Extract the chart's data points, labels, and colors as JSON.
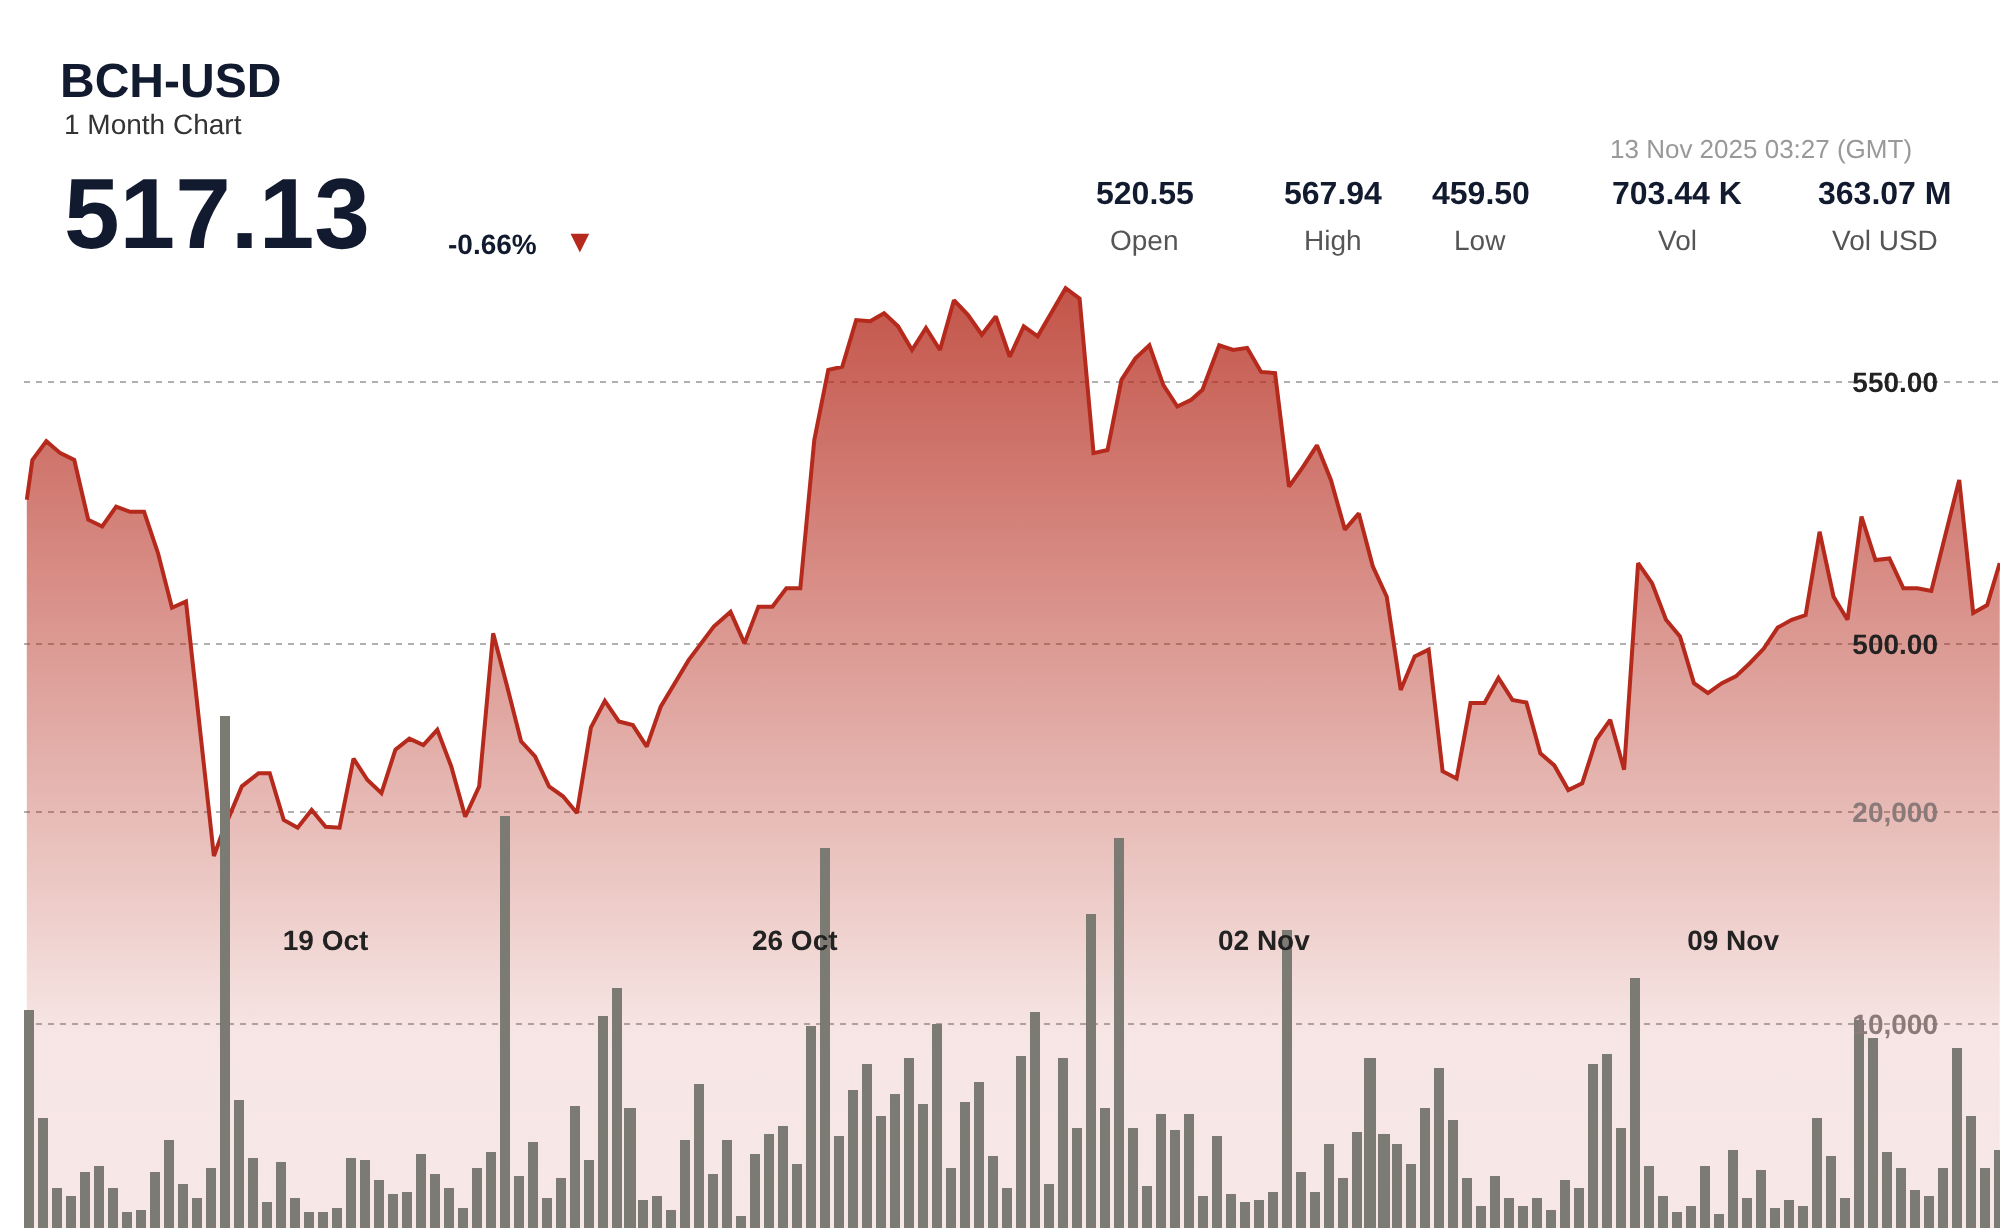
{
  "chart_data": {
    "type": "area",
    "title": "BCH-USD",
    "subtitle": "1 Month Chart",
    "annotations": [
      "517.13",
      "-0.66%",
      "▼",
      "520.55",
      "Open",
      "567.94",
      "High",
      "459.50",
      "Low",
      "703.44 K",
      "Vol",
      "363.07 M",
      "Vol USD",
      "13 Nov 2025 03:27 (GMT)"
    ],
    "xlim": [
      "2025-10-14T12:00",
      "2025-11-12T23:36"
    ],
    "xticks": [
      {
        "value": "2025-10-19",
        "label": "19 Oct"
      },
      {
        "value": "2025-10-26",
        "label": "26 Oct"
      },
      {
        "value": "2025-11-02",
        "label": "02 Nov"
      },
      {
        "value": "2025-11-09",
        "label": "09 Nov"
      }
    ],
    "ylim": [
      388.5,
      622.9
    ],
    "yticks": [
      {
        "value": 500,
        "label": "500.00"
      },
      {
        "value": 550,
        "label": "550.00"
      }
    ],
    "y2lim": [
      380,
      58300
    ],
    "y2ticks": [
      {
        "value": 10000,
        "label": "10,000"
      },
      {
        "value": 20000,
        "label": "20,000"
      }
    ],
    "grid": "y",
    "series": [
      {
        "color": "#b52a1c",
        "x": [
          "2025-10-14T13:00",
          "2025-10-14T15:00",
          "2025-10-14T20:00",
          "2025-10-15T01:00",
          "2025-10-15T06:00",
          "2025-10-15T11:00",
          "2025-10-15T16:00",
          "2025-10-15T21:00",
          "2025-10-16T02:00",
          "2025-10-16T07:00",
          "2025-10-16T12:00",
          "2025-10-16T17:00",
          "2025-10-16T22:00",
          "2025-10-17T08:00",
          "2025-10-17T11:00",
          "2025-10-17T18:00",
          "2025-10-18T00:00",
          "2025-10-18T04:00",
          "2025-10-18T09:00",
          "2025-10-18T14:00",
          "2025-10-18T19:00",
          "2025-10-19T00:00",
          "2025-10-19T05:00",
          "2025-10-19T10:00",
          "2025-10-19T15:00",
          "2025-10-19T20:00",
          "2025-10-20T01:00",
          "2025-10-20T06:00",
          "2025-10-20T11:00",
          "2025-10-20T16:00",
          "2025-10-20T21:00",
          "2025-10-21T02:00",
          "2025-10-21T07:00",
          "2025-10-21T12:00",
          "2025-10-21T17:00",
          "2025-10-21T22:00",
          "2025-10-22T03:00",
          "2025-10-22T08:00",
          "2025-10-22T13:00",
          "2025-10-22T18:00",
          "2025-10-22T23:00",
          "2025-10-23T04:00",
          "2025-10-23T09:00",
          "2025-10-23T14:00",
          "2025-10-23T19:00",
          "2025-10-24T00:00",
          "2025-10-24T10:00",
          "2025-10-24T19:00",
          "2025-10-25T01:00",
          "2025-10-25T06:00",
          "2025-10-25T11:00",
          "2025-10-25T16:00",
          "2025-10-25T21:00",
          "2025-10-26T02:00",
          "2025-10-26T07:00",
          "2025-10-26T12:00",
          "2025-10-26T17:00",
          "2025-10-26T22:00",
          "2025-10-27T03:00",
          "2025-10-27T08:00",
          "2025-10-27T13:00",
          "2025-10-27T18:00",
          "2025-10-27T23:00",
          "2025-10-28T04:00",
          "2025-10-28T09:00",
          "2025-10-28T14:00",
          "2025-10-28T19:00",
          "2025-10-29T00:00",
          "2025-10-29T05:00",
          "2025-10-29T10:00",
          "2025-10-29T15:00",
          "2025-10-30T01:00",
          "2025-10-30T06:00",
          "2025-10-30T11:00",
          "2025-10-30T16:00",
          "2025-10-30T21:00",
          "2025-10-31T02:00",
          "2025-10-31T07:00",
          "2025-10-31T12:00",
          "2025-10-31T17:00",
          "2025-10-31T22:00",
          "2025-11-01T02:00",
          "2025-11-01T08:00",
          "2025-11-01T13:00",
          "2025-11-01T18:00",
          "2025-11-01T23:00",
          "2025-11-02T04:00",
          "2025-11-02T09:00",
          "2025-11-02T14:00",
          "2025-11-02T19:00",
          "2025-11-03T00:00",
          "2025-11-03T05:00",
          "2025-11-03T10:00",
          "2025-11-03T15:00",
          "2025-11-03T20:00",
          "2025-11-04T01:00",
          "2025-11-04T06:00",
          "2025-11-04T11:00",
          "2025-11-04T16:00",
          "2025-11-04T21:00",
          "2025-11-05T02:00",
          "2025-11-05T07:00",
          "2025-11-05T12:00",
          "2025-11-05T17:00",
          "2025-11-05T22:00",
          "2025-11-06T03:00",
          "2025-11-06T08:00",
          "2025-11-06T13:00",
          "2025-11-06T18:00",
          "2025-11-06T23:00",
          "2025-11-07T04:00",
          "2025-11-07T09:00",
          "2025-11-07T14:00",
          "2025-11-07T19:00",
          "2025-11-08T00:00",
          "2025-11-08T05:00",
          "2025-11-08T10:00",
          "2025-11-08T15:00",
          "2025-11-08T20:00",
          "2025-11-09T01:00",
          "2025-11-09T06:00",
          "2025-11-09T11:00",
          "2025-11-09T16:00",
          "2025-11-09T21:00",
          "2025-11-10T02:00",
          "2025-11-10T07:00",
          "2025-11-10T12:00",
          "2025-11-10T17:00",
          "2025-11-10T22:00",
          "2025-11-11T03:00",
          "2025-11-11T08:00",
          "2025-11-11T13:00",
          "2025-11-11T18:00",
          "2025-11-11T23:00",
          "2025-11-12T09:00",
          "2025-11-12T14:00",
          "2025-11-12T19:00",
          "2025-11-12T23:30"
        ],
        "values": [
          527.5,
          535.1,
          538.7,
          536.4,
          535.1,
          523.7,
          522.4,
          526.2,
          525.2,
          525.2,
          517.3,
          506.9,
          508.1,
          459.5,
          463.9,
          472.8,
          475.3,
          475.3,
          466.4,
          464.9,
          468.3,
          465.1,
          464.9,
          478.1,
          474.0,
          471.5,
          479.8,
          481.9,
          480.7,
          483.6,
          476.6,
          467.0,
          472.8,
          502.0,
          491.9,
          481.4,
          478.5,
          472.8,
          470.9,
          467.7,
          484.0,
          489.1,
          485.2,
          484.5,
          480.4,
          488.0,
          496.9,
          503.3,
          506.1,
          500.1,
          507.1,
          507.1,
          510.6,
          510.6,
          538.9,
          552.3,
          552.9,
          561.8,
          561.6,
          563.1,
          560.6,
          556.1,
          560.3,
          556.1,
          565.6,
          562.8,
          559.0,
          562.5,
          554.8,
          560.6,
          558.7,
          567.9,
          565.9,
          536.4,
          537.0,
          550.4,
          554.5,
          557.0,
          549.4,
          545.3,
          546.6,
          548.5,
          557.0,
          556.1,
          556.5,
          551.9,
          551.7,
          530.0,
          533.8,
          537.9,
          531.3,
          521.8,
          524.9,
          514.8,
          509.0,
          491.2,
          497.6,
          498.9,
          475.7,
          474.3,
          488.7,
          488.7,
          493.5,
          489.3,
          488.8,
          479.1,
          476.8,
          472.1,
          473.4,
          481.7,
          485.5,
          476.0,
          515.4,
          511.6,
          504.6,
          501.4,
          492.5,
          490.6,
          492.5,
          493.8,
          496.3,
          499.1,
          503.1,
          504.6,
          505.5,
          521.4,
          509.0,
          504.6,
          524.3,
          516.0,
          516.3,
          510.6,
          510.6,
          510.1,
          531.3,
          505.9,
          507.4,
          515.4
        ]
      },
      {
        "type": "bar",
        "axis": "y2",
        "color": "#7b7b74",
        "x": [
          "2025-10-14T14:00",
          "2025-10-14T19:00",
          "2025-10-15T00:00",
          "2025-10-15T05:00",
          "2025-10-15T10:00",
          "2025-10-15T15:00",
          "2025-10-15T20:00",
          "2025-10-16T01:00",
          "2025-10-16T06:00",
          "2025-10-16T11:00",
          "2025-10-16T16:00",
          "2025-10-16T21:00",
          "2025-10-17T02:00",
          "2025-10-17T07:00",
          "2025-10-17T12:00",
          "2025-10-17T17:00",
          "2025-10-17T22:00",
          "2025-10-18T03:00",
          "2025-10-18T08:00",
          "2025-10-18T13:00",
          "2025-10-18T18:00",
          "2025-10-18T23:00",
          "2025-10-19T04:00",
          "2025-10-19T09:00",
          "2025-10-19T14:00",
          "2025-10-19T19:00",
          "2025-10-20T00:00",
          "2025-10-20T05:00",
          "2025-10-20T10:00",
          "2025-10-20T15:00",
          "2025-10-20T20:00",
          "2025-10-21T01:00",
          "2025-10-21T06:00",
          "2025-10-21T11:00",
          "2025-10-21T16:00",
          "2025-10-21T21:00",
          "2025-10-22T02:00",
          "2025-10-22T07:00",
          "2025-10-22T12:00",
          "2025-10-22T17:00",
          "2025-10-22T22:00",
          "2025-10-23T03:00",
          "2025-10-23T08:00",
          "2025-10-23T13:00",
          "2025-10-23T18:00",
          "2025-10-23T23:00",
          "2025-10-24T04:00",
          "2025-10-24T09:00",
          "2025-10-24T14:00",
          "2025-10-24T19:00",
          "2025-10-25T00:00",
          "2025-10-25T05:00",
          "2025-10-25T10:00",
          "2025-10-25T15:00",
          "2025-10-25T20:00",
          "2025-10-26T01:00",
          "2025-10-26T06:00",
          "2025-10-26T11:00",
          "2025-10-26T16:00",
          "2025-10-26T21:00",
          "2025-10-27T02:00",
          "2025-10-27T07:00",
          "2025-10-27T12:00",
          "2025-10-27T17:00",
          "2025-10-27T22:00",
          "2025-10-28T03:00",
          "2025-10-28T08:00",
          "2025-10-28T13:00",
          "2025-10-28T18:00",
          "2025-10-28T23:00",
          "2025-10-29T04:00",
          "2025-10-29T09:00",
          "2025-10-29T14:00",
          "2025-10-29T19:00",
          "2025-10-30T00:00",
          "2025-10-30T05:00",
          "2025-10-30T10:00",
          "2025-10-30T15:00",
          "2025-10-30T20:00",
          "2025-10-31T01:00",
          "2025-10-31T06:00",
          "2025-10-31T11:00",
          "2025-10-31T16:00",
          "2025-10-31T21:00",
          "2025-11-01T02:00",
          "2025-11-01T07:00",
          "2025-11-01T12:00",
          "2025-11-01T17:00",
          "2025-11-01T22:00",
          "2025-11-02T03:00",
          "2025-11-02T08:00",
          "2025-11-02T13:00",
          "2025-11-02T18:00",
          "2025-11-02T23:00",
          "2025-11-03T04:00",
          "2025-11-03T09:00",
          "2025-11-03T14:00",
          "2025-11-03T19:00",
          "2025-11-04T00:00",
          "2025-11-04T05:00",
          "2025-11-04T10:00",
          "2025-11-04T15:00",
          "2025-11-04T20:00",
          "2025-11-05T01:00",
          "2025-11-05T06:00",
          "2025-11-05T11:00",
          "2025-11-05T16:00",
          "2025-11-05T21:00",
          "2025-11-06T02:00",
          "2025-11-06T07:00",
          "2025-11-06T12:00",
          "2025-11-06T17:00",
          "2025-11-06T22:00",
          "2025-11-07T03:00",
          "2025-11-07T08:00",
          "2025-11-07T13:00",
          "2025-11-07T18:00",
          "2025-11-07T23:00",
          "2025-11-08T04:00",
          "2025-11-08T09:00",
          "2025-11-08T14:00",
          "2025-11-08T19:00",
          "2025-11-09T00:00",
          "2025-11-09T05:00",
          "2025-11-09T10:00",
          "2025-11-09T15:00",
          "2025-11-09T20:00",
          "2025-11-10T01:00",
          "2025-11-10T06:00",
          "2025-11-10T11:00",
          "2025-11-10T16:00",
          "2025-11-10T21:00",
          "2025-11-11T02:00",
          "2025-11-11T07:00",
          "2025-11-11T12:00",
          "2025-11-11T17:00",
          "2025-11-11T22:00",
          "2025-11-12T03:00",
          "2025-11-12T08:00",
          "2025-11-12T13:00",
          "2025-11-12T18:00",
          "2025-11-12T23:00"
        ],
        "values": [
          10700,
          5600,
          2300,
          1900,
          3000,
          3300,
          2300,
          1100,
          1200,
          3000,
          4500,
          2500,
          1800,
          3200,
          24500,
          6400,
          3700,
          1600,
          3500,
          1800,
          1100,
          1100,
          1300,
          3700,
          3600,
          2600,
          2000,
          2100,
          3900,
          2900,
          2300,
          1300,
          3200,
          4000,
          19800,
          2800,
          4400,
          1800,
          2700,
          6100,
          3600,
          10400,
          11700,
          6000,
          1700,
          1900,
          1200,
          4500,
          7200,
          2900,
          4500,
          900,
          3900,
          4800,
          5200,
          3400,
          9900,
          18300,
          4700,
          6900,
          8100,
          5700,
          6700,
          8400,
          6200,
          10000,
          3200,
          6300,
          7300,
          3800,
          2300,
          8500,
          10600,
          2500,
          8400,
          5100,
          15200,
          6000,
          18800,
          5100,
          2400,
          5800,
          5000,
          5800,
          1900,
          4700,
          2000,
          1600,
          1700,
          2100,
          14400,
          3000,
          2100,
          4300,
          2700,
          4900,
          8400,
          4800,
          4300,
          3400,
          6000,
          7900,
          5500,
          2700,
          1400,
          2800,
          1800,
          1400,
          1800,
          1200,
          2600,
          2300,
          8100,
          8600,
          5100,
          12200,
          3300,
          1900,
          1100,
          1400,
          3300,
          1000,
          4100,
          1800,
          3100,
          1300,
          1700,
          1400,
          5600,
          3800,
          1800,
          10200,
          9300,
          4000,
          3200,
          2200,
          1900,
          3200,
          8900,
          5700,
          3200,
          4100
        ]
      }
    ]
  }
}
